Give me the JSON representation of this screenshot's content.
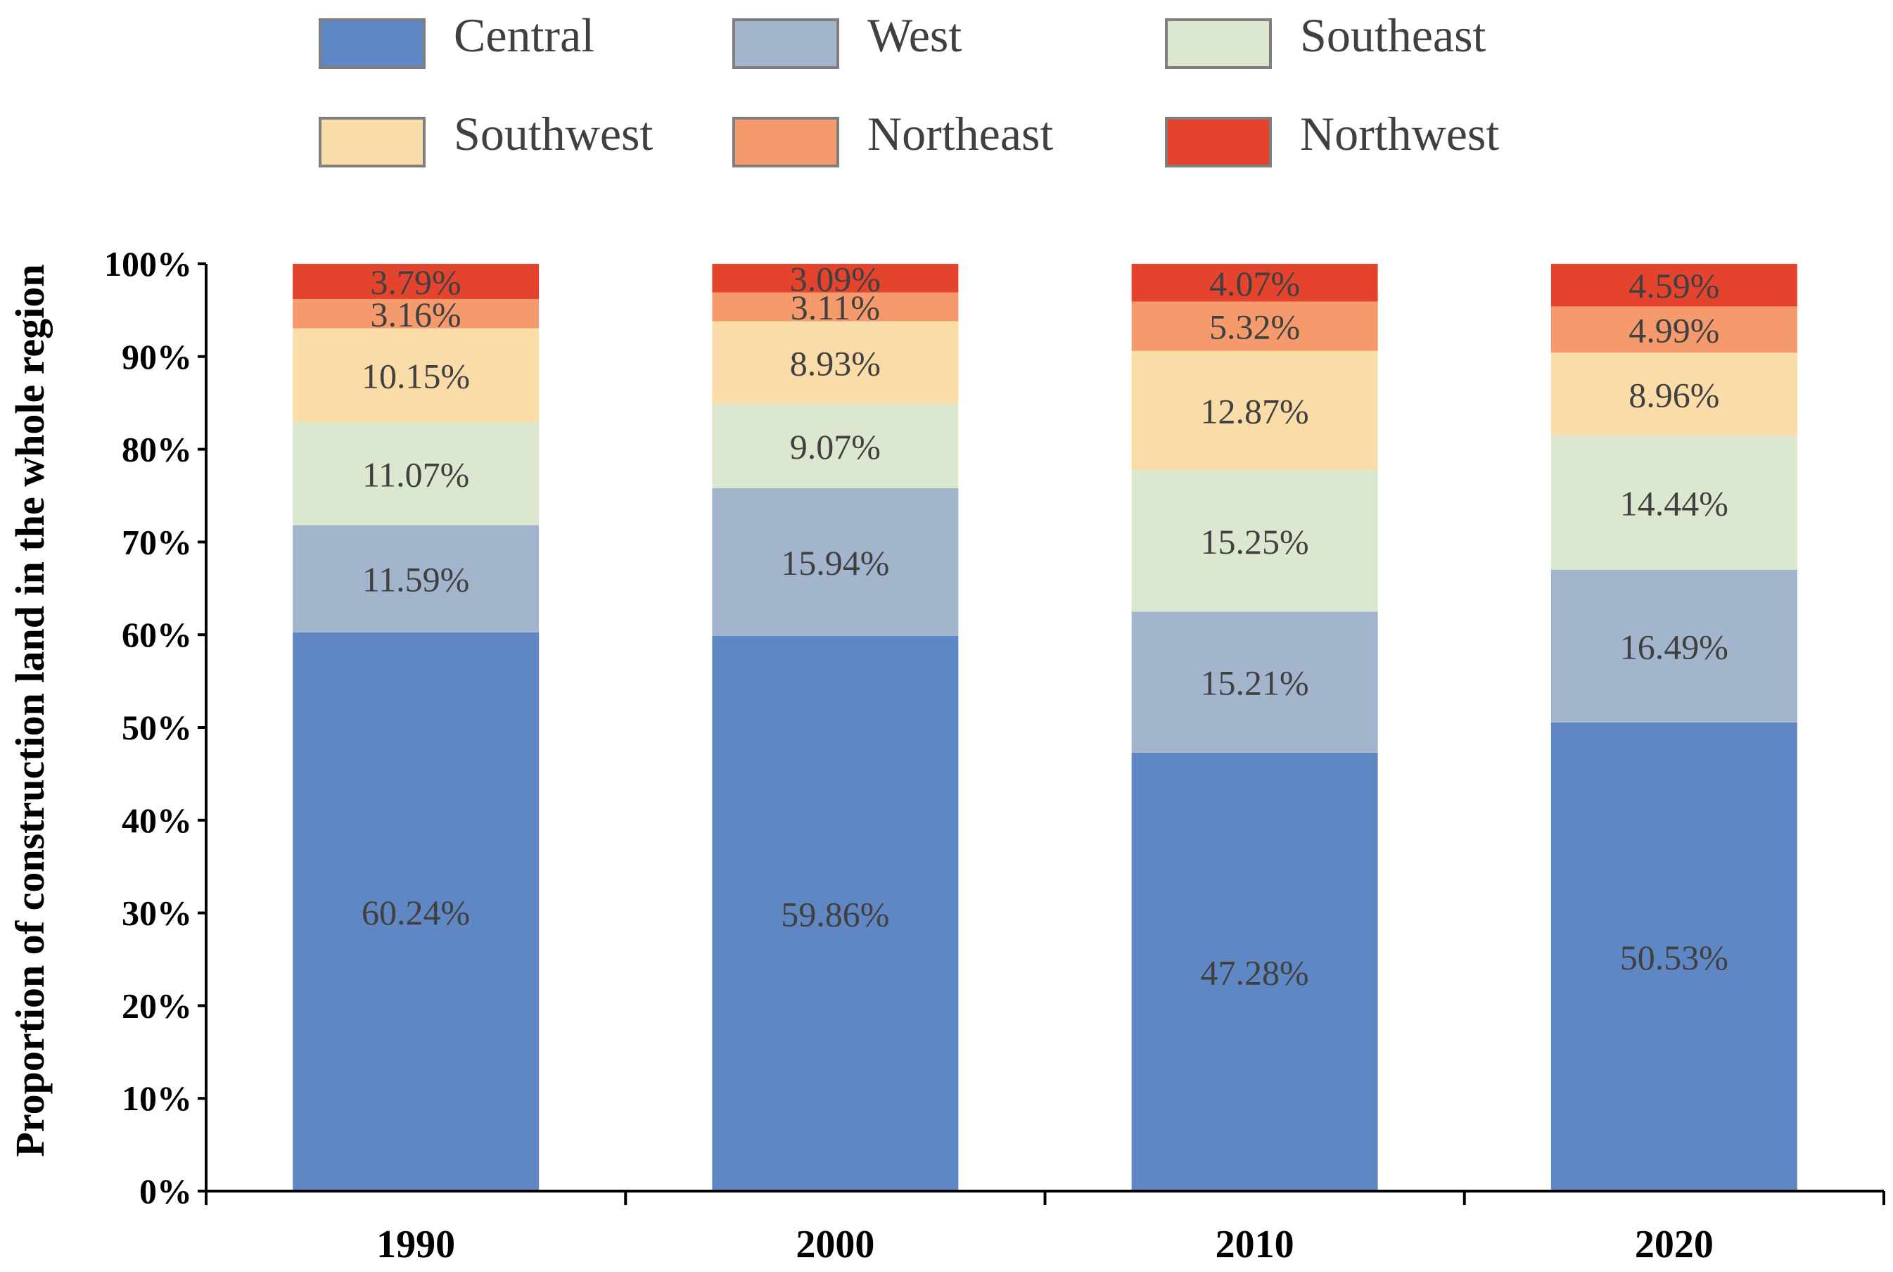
{
  "chart_data": {
    "type": "bar",
    "stacked": true,
    "title": "",
    "xlabel": "",
    "ylabel": "Proportion of construction land in the whole region",
    "ylim": [
      0,
      100
    ],
    "y_ticks": [
      "0%",
      "10%",
      "20%",
      "30%",
      "40%",
      "50%",
      "60%",
      "70%",
      "80%",
      "90%",
      "100%"
    ],
    "categories": [
      "1990",
      "2000",
      "2010",
      "2020"
    ],
    "legend_position": "top",
    "series": [
      {
        "name": "Central",
        "color": "#5E87C3",
        "values": [
          60.24,
          59.86,
          47.28,
          50.53
        ],
        "labels": [
          "60.24%",
          "59.86%",
          "47.28%",
          "50.53%"
        ]
      },
      {
        "name": "West",
        "color": "#A3B5CC",
        "values": [
          11.59,
          15.94,
          15.21,
          16.49
        ],
        "labels": [
          "11.59%",
          "15.94%",
          "15.21%",
          "16.49%"
        ]
      },
      {
        "name": "Southeast",
        "color": "#DCE7CF",
        "values": [
          11.07,
          9.07,
          15.25,
          14.44
        ],
        "labels": [
          "11.07%",
          "9.07%",
          "15.25%",
          "14.44%"
        ]
      },
      {
        "name": "Southwest",
        "color": "#FADCA9",
        "values": [
          10.15,
          8.93,
          12.87,
          8.96
        ],
        "labels": [
          "10.15%",
          "8.93%",
          "12.87%",
          "8.96%"
        ]
      },
      {
        "name": "Northeast",
        "color": "#F59A6C",
        "values": [
          3.16,
          3.11,
          5.32,
          4.99
        ],
        "labels": [
          "3.16%",
          "3.11%",
          "5.32%",
          "4.99%"
        ]
      },
      {
        "name": "Northwest",
        "color": "#E4432E",
        "values": [
          3.79,
          3.09,
          4.07,
          4.59
        ],
        "labels": [
          "3.79%",
          "3.09%",
          "4.07%",
          "4.59%"
        ]
      }
    ]
  }
}
